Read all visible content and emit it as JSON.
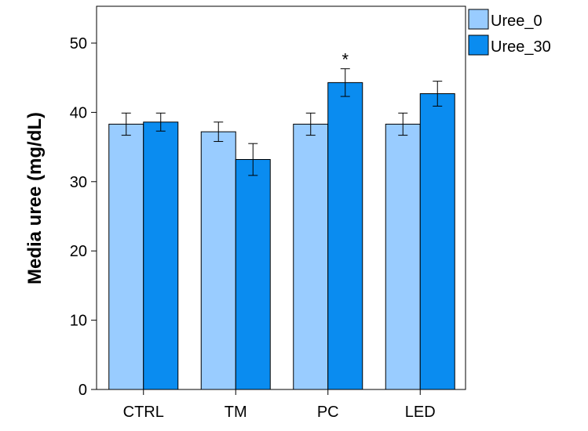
{
  "chart_data": {
    "type": "bar",
    "categories": [
      "CTRL",
      "TM",
      "PC",
      "LED"
    ],
    "series": [
      {
        "name": "Uree_0",
        "values": [
          38.3,
          37.2,
          38.3,
          38.3
        ],
        "error": [
          1.6,
          1.4,
          1.6,
          1.6
        ],
        "color": "#99ccff"
      },
      {
        "name": "Uree_30",
        "values": [
          38.6,
          33.2,
          44.3,
          42.7
        ],
        "error": [
          1.3,
          2.3,
          2.0,
          1.8
        ],
        "color": "#0a8cf0"
      }
    ],
    "annotations": [
      {
        "category": "PC",
        "series": "Uree_30",
        "text": "*"
      }
    ],
    "title": "",
    "xlabel": "",
    "ylabel": "Media uree (mg/dL)",
    "ylim": [
      0,
      55
    ],
    "yticks": [
      0,
      10,
      20,
      30,
      40,
      50
    ],
    "grid": false,
    "legend_position": "top-right"
  }
}
